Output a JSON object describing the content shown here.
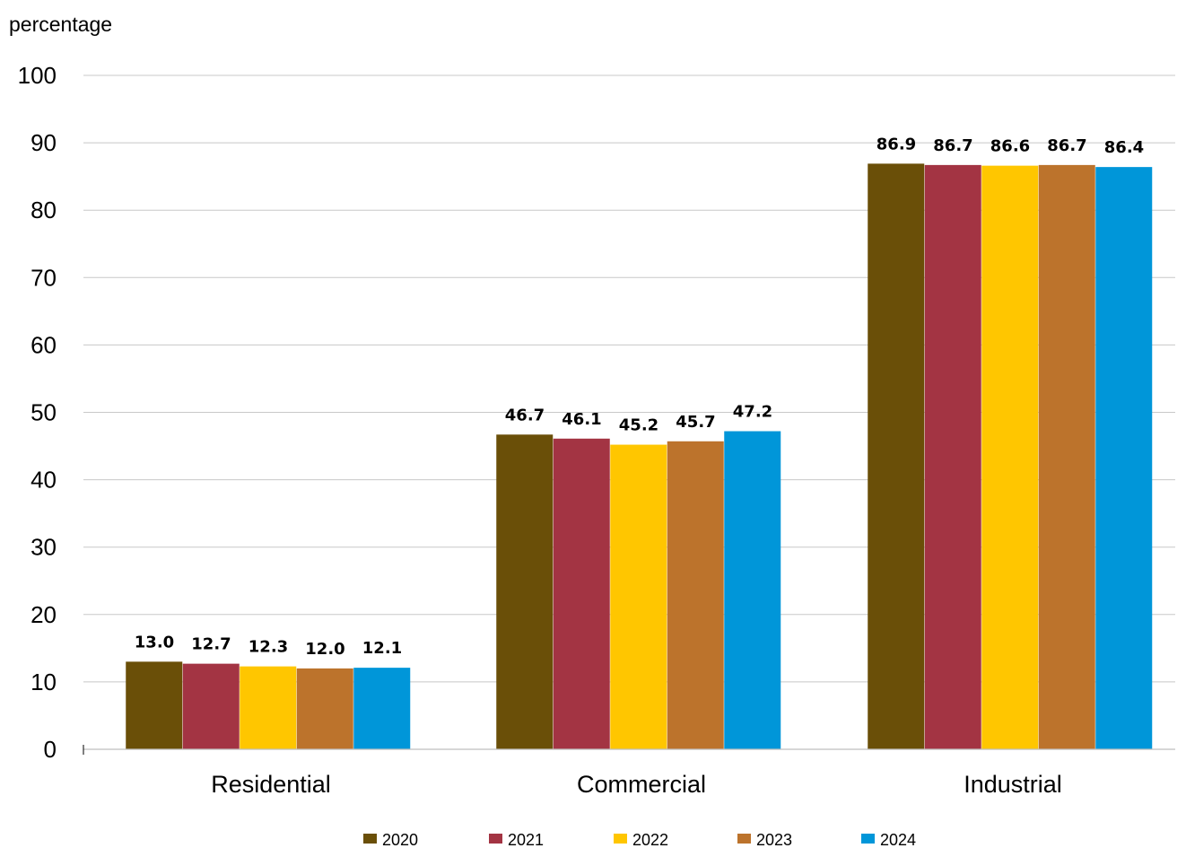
{
  "chart_data": {
    "type": "bar",
    "ylabel": "percentage",
    "xlabel": "",
    "ylim": [
      0,
      100
    ],
    "yticks": [
      0,
      10,
      20,
      30,
      40,
      50,
      60,
      70,
      80,
      90,
      100
    ],
    "grid": true,
    "legend_position": "bottom",
    "categories": [
      "Residential",
      "Commercial",
      "Industrial"
    ],
    "series": [
      {
        "name": "2020",
        "color": "#6a4f08",
        "values": [
          13.0,
          46.7,
          86.9
        ],
        "labels": [
          "13.0",
          "46.7",
          "86.9"
        ]
      },
      {
        "name": "2021",
        "color": "#a33443",
        "values": [
          12.7,
          46.1,
          86.7
        ],
        "labels": [
          "12.7",
          "46.1",
          "86.7"
        ]
      },
      {
        "name": "2022",
        "color": "#ffc600",
        "values": [
          12.3,
          45.2,
          86.6
        ],
        "labels": [
          "12.3",
          "45.2",
          "86.6"
        ]
      },
      {
        "name": "2023",
        "color": "#bc732c",
        "values": [
          12.0,
          45.7,
          86.7
        ],
        "labels": [
          "12.0",
          "45.7",
          "86.7"
        ]
      },
      {
        "name": "2024",
        "color": "#0096d9",
        "values": [
          12.1,
          47.2,
          86.4
        ],
        "labels": [
          "12.1",
          "47.2",
          "86.4"
        ]
      }
    ]
  }
}
